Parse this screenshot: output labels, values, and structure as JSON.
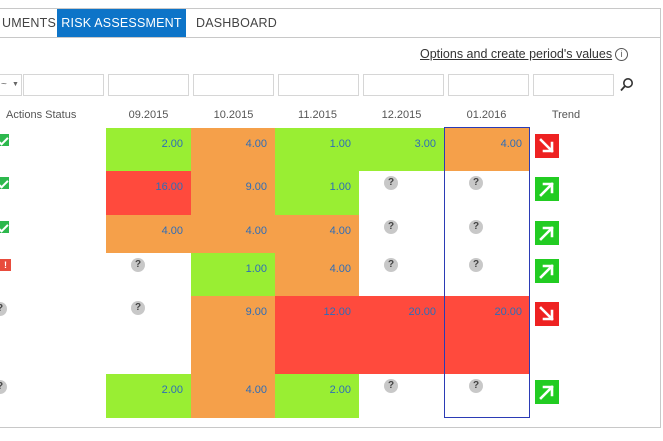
{
  "tabs": [
    {
      "label": "UMENTS",
      "active": false
    },
    {
      "label": "RISK ASSESSMENT",
      "active": true
    },
    {
      "label": "DASHBOARD",
      "active": false
    }
  ],
  "options_link": "Options and create period's values",
  "info_icon": "i",
  "columns": {
    "actions_status": "Actions Status",
    "periods": [
      "09.2015",
      "10.2015",
      "11.2015",
      "12.2015",
      "01.2016"
    ],
    "trend": "Trend"
  },
  "filter_select_glyph": "~",
  "status_colors": {
    "green": "#99ee33",
    "orange": "#f5a04a",
    "red": "#ff4a3d",
    "empty": "#ffffff"
  },
  "rows": [
    {
      "status": "check",
      "cells": [
        {
          "v": "2.00",
          "c": "green"
        },
        {
          "v": "4.00",
          "c": "orange"
        },
        {
          "v": "1.00",
          "c": "green"
        },
        {
          "v": "3.00",
          "c": "green"
        },
        {
          "v": "4.00",
          "c": "orange"
        }
      ],
      "trend": "down"
    },
    {
      "status": "check",
      "cells": [
        {
          "v": "16.00",
          "c": "red"
        },
        {
          "v": "9.00",
          "c": "orange"
        },
        {
          "v": "1.00",
          "c": "green"
        },
        {
          "v": "?",
          "c": "empty"
        },
        {
          "v": "?",
          "c": "empty"
        }
      ],
      "trend": "up"
    },
    {
      "status": "check",
      "cells": [
        {
          "v": "4.00",
          "c": "orange"
        },
        {
          "v": "4.00",
          "c": "orange"
        },
        {
          "v": "4.00",
          "c": "orange"
        },
        {
          "v": "?",
          "c": "empty"
        },
        {
          "v": "?",
          "c": "empty"
        }
      ],
      "trend": "up"
    },
    {
      "status": "warn",
      "cells": [
        {
          "v": "?",
          "c": "empty"
        },
        {
          "v": "1.00",
          "c": "green"
        },
        {
          "v": "4.00",
          "c": "orange"
        },
        {
          "v": "?",
          "c": "empty"
        },
        {
          "v": "?",
          "c": "empty"
        }
      ],
      "trend": "up"
    },
    {
      "status": "q",
      "cells": [
        {
          "v": "?",
          "c": "empty"
        },
        {
          "v": "9.00",
          "c": "orange"
        },
        {
          "v": "12.00",
          "c": "red"
        },
        {
          "v": "20.00",
          "c": "red"
        },
        {
          "v": "20.00",
          "c": "red"
        }
      ],
      "trend": "down"
    },
    {
      "status": "q",
      "cells": [
        {
          "v": "2.00",
          "c": "green"
        },
        {
          "v": "4.00",
          "c": "orange"
        },
        {
          "v": "2.00",
          "c": "green"
        },
        {
          "v": "?",
          "c": "empty"
        },
        {
          "v": "?",
          "c": "empty"
        }
      ],
      "trend": "up"
    }
  ],
  "status_q": "?",
  "status_warn": "!"
}
